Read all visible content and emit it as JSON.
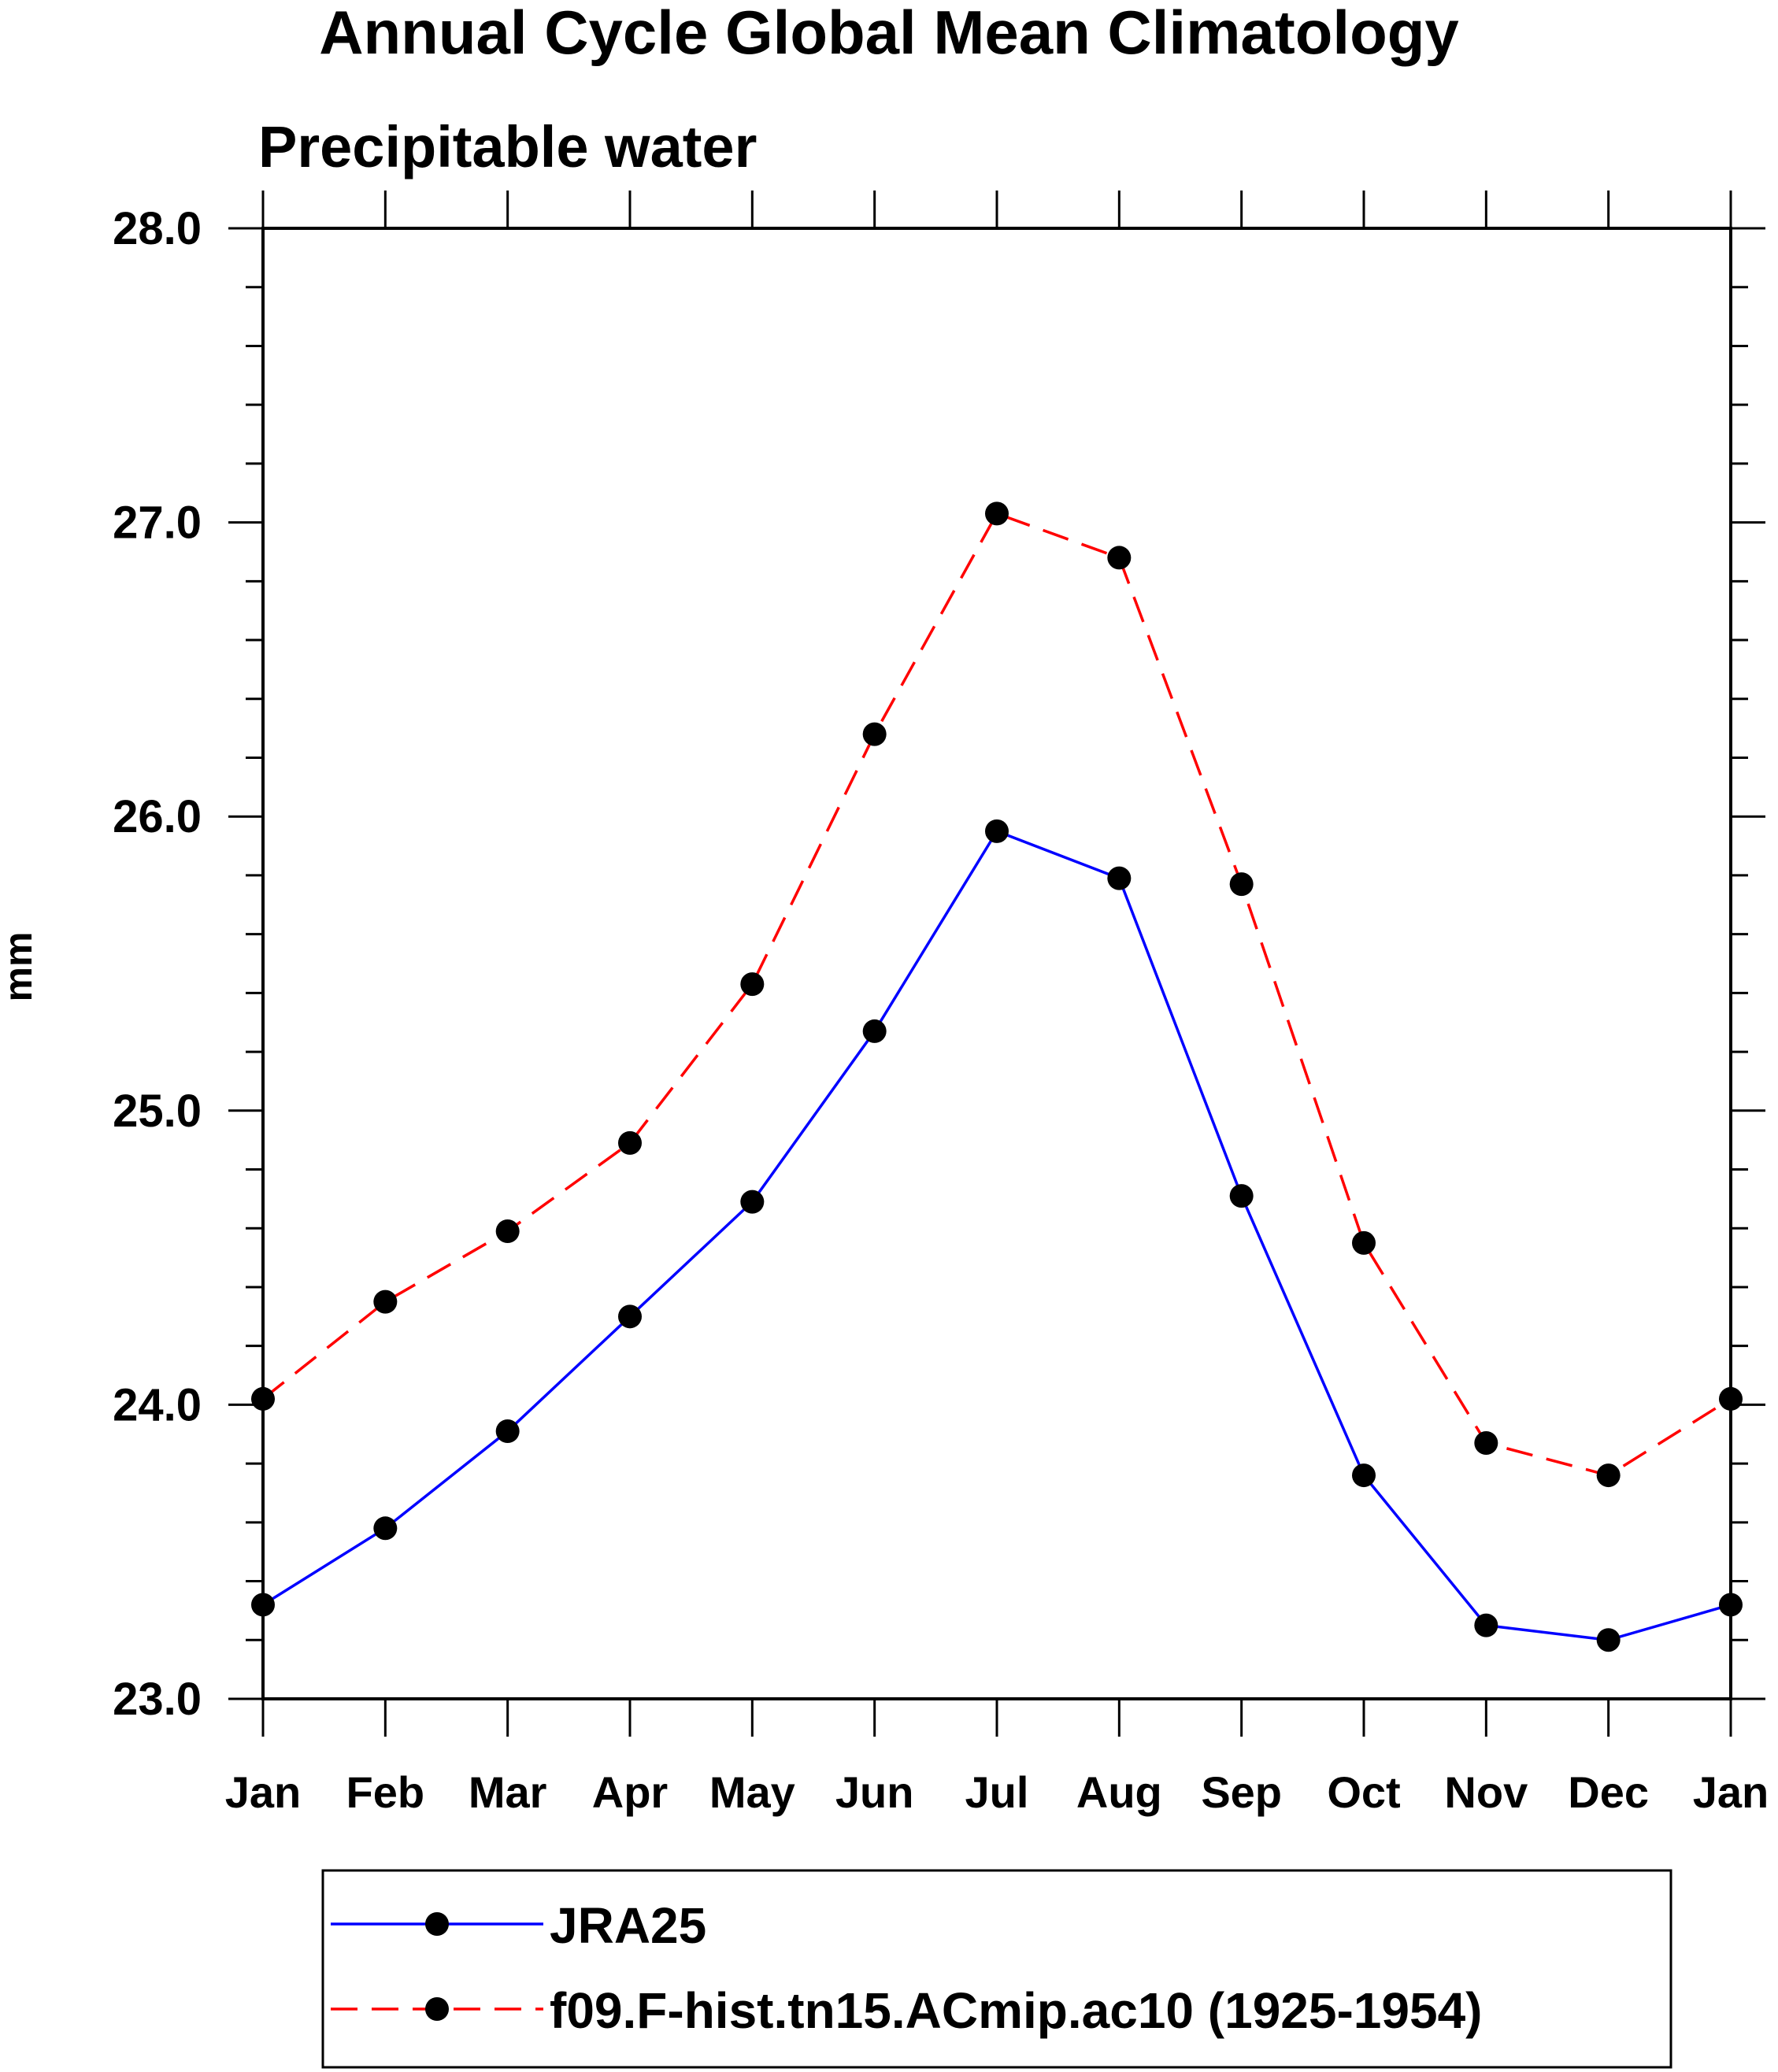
{
  "chart_data": {
    "type": "line",
    "title": "Annual Cycle Global Mean Climatology",
    "subtitle": "Precipitable water",
    "xlabel": "",
    "ylabel": "mm",
    "categories": [
      "Jan",
      "Feb",
      "Mar",
      "Apr",
      "May",
      "Jun",
      "Jul",
      "Aug",
      "Sep",
      "Oct",
      "Nov",
      "Dec",
      "Jan"
    ],
    "yticks": [
      "23.0",
      "24.0",
      "25.0",
      "26.0",
      "27.0",
      "28.0"
    ],
    "ylim": [
      23.0,
      28.0
    ],
    "grid": false,
    "legend_position": "bottom",
    "series": [
      {
        "name": "JRA25",
        "color": "#0000ff",
        "line_style": "solid",
        "marker": "filled-circle",
        "marker_color": "#000000",
        "values": [
          23.32,
          23.58,
          23.91,
          24.3,
          24.69,
          25.27,
          25.95,
          25.79,
          24.71,
          23.76,
          23.25,
          23.2,
          23.32
        ]
      },
      {
        "name": "f09.F-hist.tn15.ACmip.ac10 (1925-1954)",
        "color": "#ff0000",
        "line_style": "dashed",
        "marker": "filled-circle",
        "marker_color": "#000000",
        "values": [
          24.02,
          24.35,
          24.59,
          24.89,
          25.43,
          26.28,
          27.03,
          26.88,
          25.77,
          24.55,
          23.87,
          23.76,
          24.02
        ]
      }
    ]
  }
}
